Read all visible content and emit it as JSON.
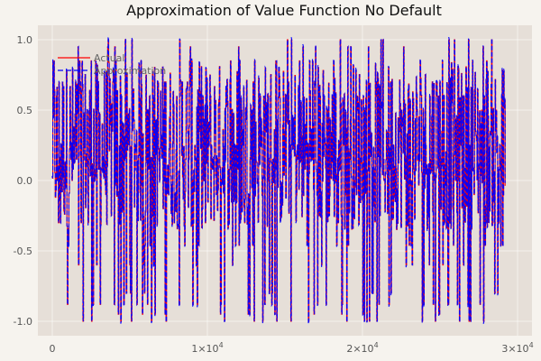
{
  "chart_data": {
    "type": "line",
    "title": "Approximation of Value Function No Default",
    "xlabel": "",
    "ylabel": "",
    "xlim": [
      0,
      30000
    ],
    "ylim": [
      -1.0,
      1.0
    ],
    "x_ticks": [
      {
        "value": 0,
        "base": "0",
        "exp": ""
      },
      {
        "value": 10000,
        "base": "1×10",
        "exp": "4"
      },
      {
        "value": 20000,
        "base": "2×10",
        "exp": "4"
      },
      {
        "value": 30000,
        "base": "3×10",
        "exp": "4"
      }
    ],
    "y_ticks": [
      {
        "value": 1.0,
        "label": "1.0"
      },
      {
        "value": 0.5,
        "label": "0.5"
      },
      {
        "value": 0.0,
        "label": "0.0"
      },
      {
        "value": -0.5,
        "label": "-0.5"
      },
      {
        "value": -1.0,
        "label": "-1.0"
      }
    ],
    "grid": true,
    "legend_position": "top-left",
    "series": [
      {
        "name": "Actual",
        "color": "#ff0000",
        "style": "solid"
      },
      {
        "name": "Approximation",
        "color": "#0000ff",
        "style": "dashed"
      }
    ],
    "x_max_data": 29200,
    "background": "#e6dfd8"
  }
}
